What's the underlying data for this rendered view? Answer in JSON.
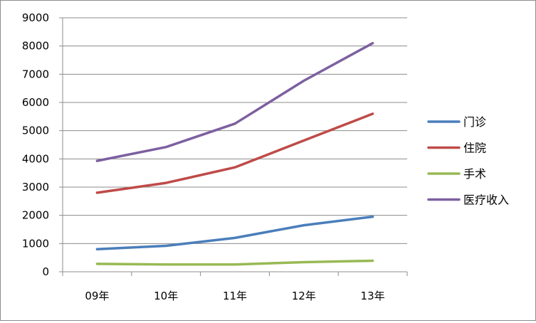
{
  "chart_data": {
    "type": "line",
    "title": "",
    "xlabel": "",
    "ylabel": "",
    "categories": [
      "09年",
      "10年",
      "11年",
      "12年",
      "13年"
    ],
    "ylim": [
      0,
      9000
    ],
    "yticks": [
      0,
      1000,
      2000,
      3000,
      4000,
      5000,
      6000,
      7000,
      8000,
      9000
    ],
    "grid": true,
    "legend": "right",
    "series": [
      {
        "name": "门诊",
        "color": "#4a7ebb",
        "values": [
          800,
          920,
          1200,
          1650,
          1950
        ]
      },
      {
        "name": "住院",
        "color": "#be4b48",
        "values": [
          2800,
          3150,
          3700,
          4650,
          5600
        ]
      },
      {
        "name": "手术",
        "color": "#98b954",
        "values": [
          280,
          260,
          260,
          340,
          390
        ]
      },
      {
        "name": "医疗收入",
        "color": "#7d60a0",
        "values": [
          3930,
          4420,
          5250,
          6770,
          8100
        ]
      }
    ]
  }
}
